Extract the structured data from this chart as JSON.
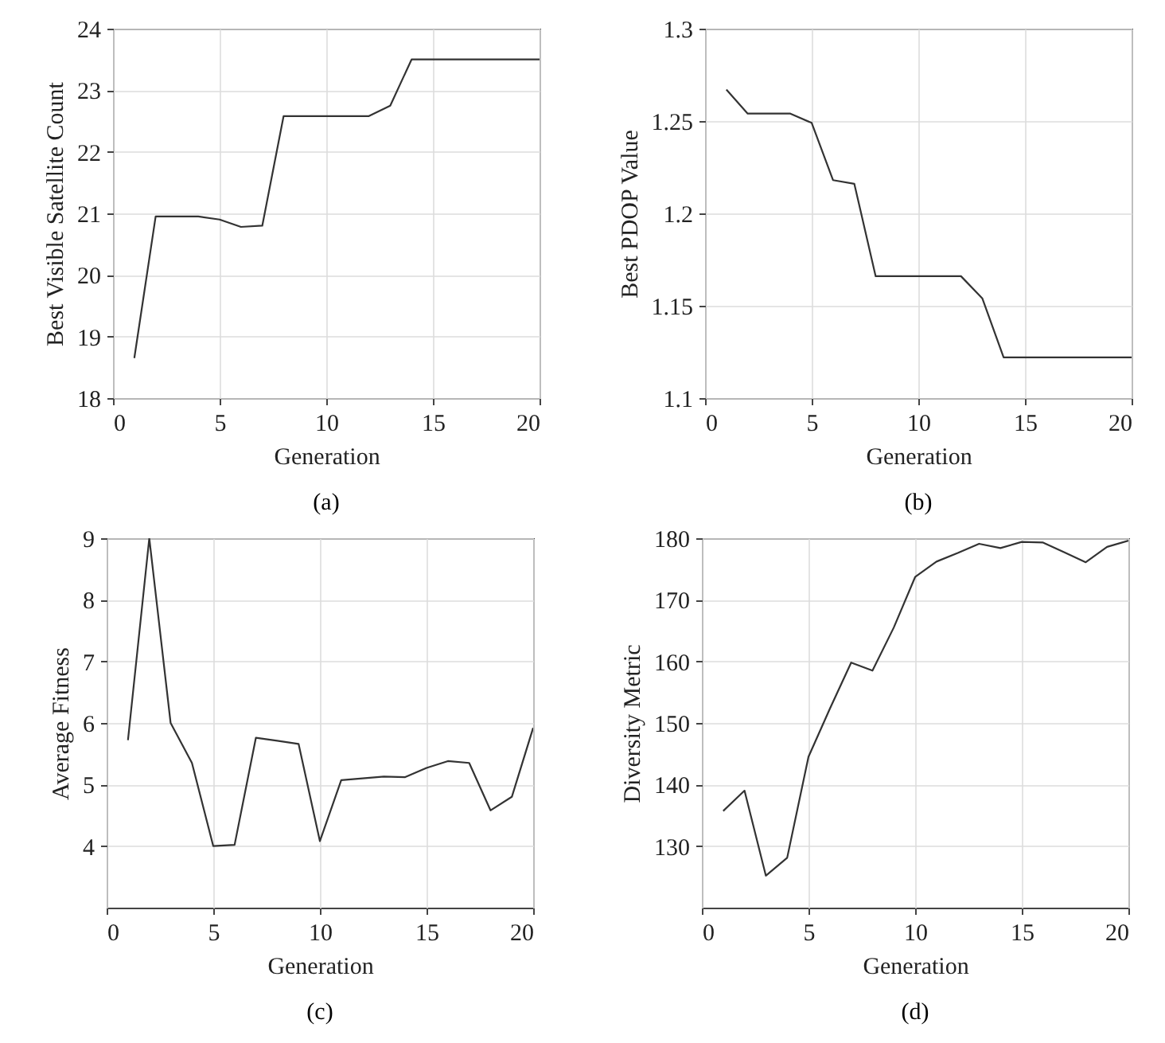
{
  "chart_data": [
    {
      "type": "line",
      "title": "(a)",
      "xlabel": "Generation",
      "ylabel": "Best Visible Satellite Count",
      "x": [
        1,
        2,
        3,
        4,
        5,
        6,
        7,
        8,
        9,
        10,
        11,
        12,
        13,
        14,
        15,
        16,
        17,
        18,
        19,
        20
      ],
      "series": [
        {
          "color": "#333333",
          "values": [
            18.65,
            20.95,
            20.95,
            20.95,
            20.9,
            20.78,
            20.8,
            22.58,
            22.58,
            22.58,
            22.58,
            22.58,
            22.75,
            23.5,
            23.5,
            23.5,
            23.5,
            23.5,
            23.5,
            23.5
          ]
        }
      ],
      "xlim": [
        0,
        20
      ],
      "xticks": [
        0,
        5,
        10,
        15,
        20
      ],
      "ylim": [
        18,
        24
      ],
      "yticks": [
        18,
        19,
        20,
        21,
        22,
        23,
        24
      ],
      "grid": true
    },
    {
      "type": "line",
      "title": "(b)",
      "xlabel": "Generation",
      "ylabel": "Best PDOP Value",
      "x": [
        1,
        2,
        3,
        4,
        5,
        6,
        7,
        8,
        9,
        10,
        11,
        12,
        13,
        14,
        15,
        16,
        17,
        18,
        19,
        20
      ],
      "series": [
        {
          "color": "#333333",
          "values": [
            1.267,
            1.254,
            1.254,
            1.254,
            1.249,
            1.218,
            1.216,
            1.166,
            1.166,
            1.166,
            1.166,
            1.166,
            1.154,
            1.122,
            1.122,
            1.122,
            1.122,
            1.122,
            1.122,
            1.122
          ]
        }
      ],
      "xlim": [
        0,
        20
      ],
      "xticks": [
        0,
        5,
        10,
        15,
        20
      ],
      "ylim": [
        1.1,
        1.3
      ],
      "yticks": [
        1.1,
        1.15,
        1.2,
        1.25,
        1.3
      ],
      "grid": true
    },
    {
      "type": "line",
      "title": "(c)",
      "xlabel": "Generation",
      "ylabel": "Average Fitness",
      "x": [
        1,
        2,
        3,
        4,
        5,
        6,
        7,
        8,
        9,
        10,
        11,
        12,
        13,
        14,
        15,
        16,
        17,
        18,
        19,
        20
      ],
      "series": [
        {
          "color": "#333333",
          "values": [
            5.72,
            9.0,
            6.0,
            5.35,
            4.0,
            4.02,
            5.76,
            5.71,
            5.66,
            4.08,
            5.07,
            5.1,
            5.13,
            5.12,
            5.27,
            5.38,
            5.35,
            4.58,
            4.8,
            5.92
          ]
        }
      ],
      "xlim": [
        0,
        20
      ],
      "xticks": [
        0,
        5,
        10,
        15,
        20
      ],
      "ylim": [
        3,
        9
      ],
      "yticks": [
        4,
        5,
        6,
        7,
        8,
        9
      ],
      "grid": true
    },
    {
      "type": "line",
      "title": "(d)",
      "xlabel": "Generation",
      "ylabel": "Diversity Metric",
      "x": [
        1,
        2,
        3,
        4,
        5,
        6,
        7,
        8,
        9,
        10,
        11,
        12,
        13,
        14,
        15,
        16,
        17,
        18,
        19,
        20
      ],
      "series": [
        {
          "color": "#333333",
          "values": [
            135.7,
            139,
            125.2,
            128.1,
            144.5,
            152.3,
            159.8,
            158.5,
            165.5,
            173.7,
            176.2,
            177.6,
            179.1,
            178.4,
            179.4,
            179.3,
            177.7,
            176.1,
            178.6,
            179.6
          ]
        }
      ],
      "xlim": [
        0,
        20
      ],
      "xticks": [
        0,
        5,
        10,
        15,
        20
      ],
      "ylim": [
        120,
        180
      ],
      "yticks": [
        130,
        140,
        150,
        160,
        170,
        180
      ],
      "grid": true
    }
  ]
}
